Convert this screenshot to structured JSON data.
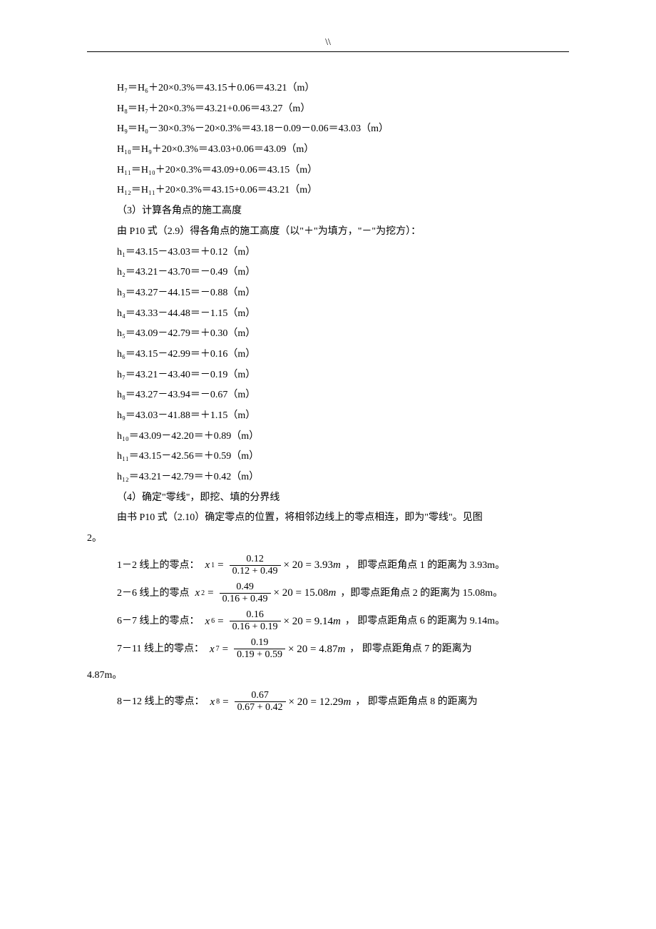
{
  "header_mark": "\\\\",
  "H_lines": [
    "H₇＝H₆＋20×0.3%＝43.15＋0.06＝43.21（m）",
    "H₈＝H₇＋20×0.3%＝43.21+0.06＝43.27（m）",
    "H₉＝H₀－30×0.3%－20×0.3%＝43.18－0.09－0.06＝43.03（m）",
    "H₁₀＝H₉＋20×0.3%＝43.03+0.06＝43.09（m）",
    "H₁₁＝H₁₀＋20×0.3%＝43.09+0.06＝43.15（m）",
    "H₁₂＝H₁₁＋20×0.3%＝43.15+0.06＝43.21（m）"
  ],
  "section3_title": "（3）计算各角点的施工高度",
  "section3_desc": "由 P10 式（2.9）得各角点的施工高度（以\"＋\"为填方，\"－\"为挖方）：",
  "h_lines": [
    "h₁＝43.15－43.03＝＋0.12（m）",
    "h₂＝43.21－43.70＝－0.49（m）",
    "h₃＝43.27－44.15＝－0.88（m）",
    "h₄＝43.33－44.48＝－1.15（m）",
    "h₅＝43.09－42.79＝＋0.30（m）",
    "h₆＝43.15－42.99＝＋0.16（m）",
    "h₇＝43.21－43.40＝－0.19（m）",
    "h₈＝43.27－43.94＝－0.67（m）",
    "h₉＝43.03－41.88＝＋1.15（m）",
    "h₁₀＝43.09－42.20＝＋0.89（m）",
    "h₁₁＝43.15－42.56＝＋0.59（m）",
    "h₁₂＝43.21－42.79＝＋0.42（m）"
  ],
  "section4_title": "（4）确定\"零线\"，即挖、填的分界线",
  "section4_desc_line1": "由书 P10 式（2.10）确定零点的位置，将相邻边线上的零点相连，即为\"零线\"。见图",
  "section4_desc_line2": "2。",
  "zero_points": [
    {
      "pre": "1－2 线上的零点：",
      "var": "x",
      "sub": "1",
      "num": "0.12",
      "den": "0.12 + 0.49",
      "mult": "× 20 = 3.93",
      "unit": "m",
      "post": "， 即零点距角点 1 的距离为 3.93m。"
    },
    {
      "pre": "2－6 线上的零点",
      "var": "x",
      "sub": "2",
      "num": "0.49",
      "den": "0.16 + 0.49",
      "mult": "× 20 = 15.08",
      "unit": "m",
      "post": "，即零点距角点 2 的距离为 15.08m。"
    },
    {
      "pre": "6－7 线上的零点：",
      "var": "x",
      "sub": "6",
      "num": "0.16",
      "den": "0.16 + 0.19",
      "mult": "× 20 = 9.14",
      "unit": "m",
      "post": "， 即零点距角点 6 的距离为 9.14m。"
    },
    {
      "pre": "7－11 线上的零点：",
      "var": "x",
      "sub": "7",
      "num": "0.19",
      "den": "0.19 + 0.59",
      "mult": "× 20 = 4.87",
      "unit": "m",
      "post": "， 即零点距角点 7 的距离为"
    }
  ],
  "wrap_487": "4.87m。",
  "zero_point_8": {
    "pre": "8－12 线上的零点：",
    "var": "x",
    "sub": "8",
    "num": "0.67",
    "den": "0.67 + 0.42",
    "mult": "× 20 = 12.29",
    "unit": "m",
    "post": "， 即零点距角点 8 的距离为"
  }
}
